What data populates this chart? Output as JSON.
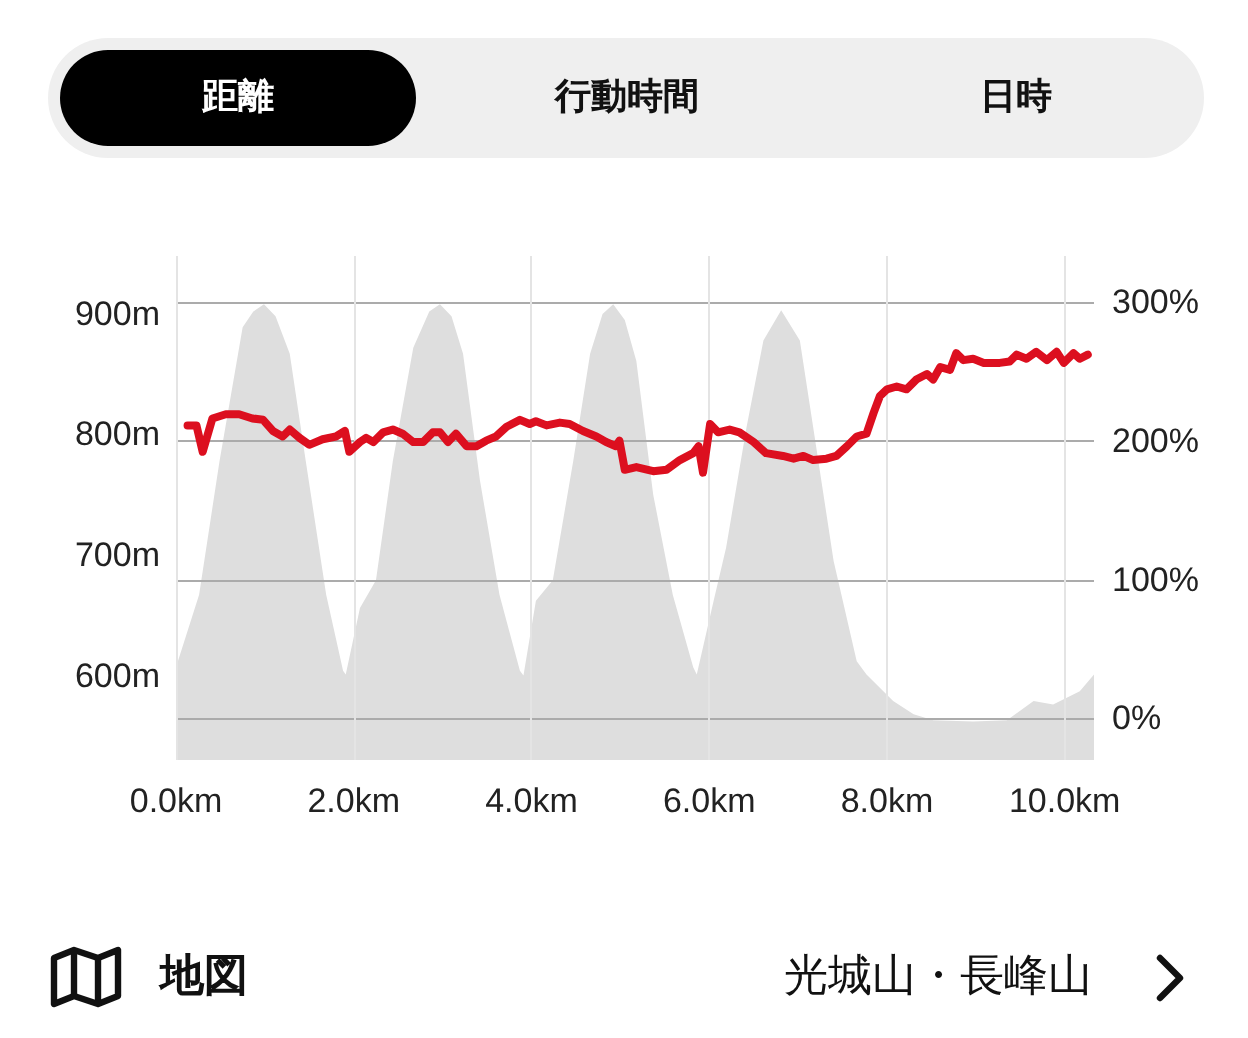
{
  "chart_data": {
    "type": "area",
    "annotations": [
      "距離",
      "行動時間",
      "日時",
      "地図",
      "光城山・長峰山"
    ],
    "xlim": [
      0,
      10.33
    ],
    "xticks": [
      {
        "value": 0,
        "label": "0.0km"
      },
      {
        "value": 2,
        "label": "2.0km"
      },
      {
        "value": 4,
        "label": "4.0km"
      },
      {
        "value": 6,
        "label": "6.0km"
      },
      {
        "value": 8,
        "label": "8.0km"
      },
      {
        "value": 10,
        "label": "10.0km"
      }
    ],
    "ylim": [
      530,
      948
    ],
    "yticks": [
      {
        "value": 600,
        "label": "600m"
      },
      {
        "value": 700,
        "label": "700m"
      },
      {
        "value": 800,
        "label": "800m"
      },
      {
        "value": 900,
        "label": "900m"
      }
    ],
    "y2lim": [
      -30,
      333
    ],
    "y2ticks": [
      {
        "value": 0,
        "label": "0%"
      },
      {
        "value": 100,
        "label": "100%"
      },
      {
        "value": 200,
        "label": "200%"
      },
      {
        "value": 300,
        "label": "300%"
      }
    ],
    "grid": true,
    "series": [
      {
        "color": "#dedede",
        "x": [
          0,
          0.26,
          0.49,
          0.75,
          0.87,
          0.99,
          1.12,
          1.28,
          1.46,
          1.69,
          1.88,
          1.91,
          2.07,
          2.25,
          2.44,
          2.67,
          2.85,
          2.97,
          3.1,
          3.23,
          3.42,
          3.64,
          3.87,
          3.91,
          4.05,
          4.24,
          4.47,
          4.66,
          4.8,
          4.92,
          5.05,
          5.18,
          5.37,
          5.59,
          5.82,
          5.86,
          6.05,
          6.19,
          6.42,
          6.61,
          6.81,
          7.02,
          7.17,
          7.4,
          7.66,
          7.77,
          8.07,
          8.3,
          8.52,
          8.97,
          9.35,
          9.65,
          9.87,
          10.17,
          10.33
        ],
        "values": [
          607,
          667,
          778,
          889,
          902,
          908,
          898,
          867,
          778,
          667,
          604,
          601,
          656,
          679,
          778,
          872,
          902,
          908,
          898,
          867,
          762,
          667,
          604,
          600,
          662,
          679,
          778,
          867,
          900,
          908,
          895,
          861,
          750,
          667,
          607,
          601,
          662,
          706,
          806,
          878,
          903,
          878,
          806,
          695,
          612,
          601,
          579,
          568,
          563,
          562,
          563,
          579,
          576,
          587,
          601
        ]
      },
      {
        "type": "line",
        "axis": "y2",
        "color": "#dc0f1f",
        "x": [
          0.13,
          0.23,
          0.3,
          0.41,
          0.56,
          0.71,
          0.86,
          0.98,
          1.09,
          1.2,
          1.28,
          1.39,
          1.5,
          1.65,
          1.8,
          1.9,
          1.95,
          2.07,
          2.14,
          2.22,
          2.33,
          2.44,
          2.55,
          2.67,
          2.78,
          2.89,
          2.97,
          3.06,
          3.15,
          3.27,
          3.38,
          3.49,
          3.6,
          3.72,
          3.87,
          3.98,
          4.05,
          4.17,
          4.32,
          4.43,
          4.58,
          4.73,
          4.84,
          4.95,
          4.99,
          5.05,
          5.18,
          5.37,
          5.52,
          5.67,
          5.82,
          5.88,
          5.93,
          6.01,
          6.1,
          6.23,
          6.34,
          6.5,
          6.64,
          6.83,
          6.95,
          7.06,
          7.17,
          7.32,
          7.43,
          7.55,
          7.66,
          7.77,
          7.85,
          7.92,
          8,
          8.11,
          8.22,
          8.33,
          8.45,
          8.52,
          8.6,
          8.71,
          8.78,
          8.86,
          8.97,
          9.09,
          9.27,
          9.38,
          9.46,
          9.57,
          9.68,
          9.8,
          9.91,
          9.99,
          10.1,
          10.17,
          10.26
        ],
        "values": [
          211,
          211,
          192,
          216,
          219,
          219,
          216,
          215,
          207,
          203,
          208,
          202,
          197,
          201,
          203,
          207,
          192,
          199,
          202,
          199,
          206,
          208,
          205,
          199,
          199,
          206,
          206,
          199,
          205,
          196,
          196,
          200,
          203,
          210,
          215,
          212,
          214,
          211,
          213,
          212,
          207,
          203,
          199,
          196,
          200,
          179,
          181,
          178,
          179,
          186,
          191,
          196,
          177,
          212,
          206,
          208,
          206,
          199,
          191,
          189,
          187,
          189,
          186,
          187,
          189,
          196,
          203,
          205,
          220,
          232,
          237,
          239,
          237,
          244,
          248,
          244,
          253,
          251,
          263,
          258,
          259,
          256,
          256,
          257,
          262,
          259,
          264,
          258,
          264,
          256,
          263,
          259,
          262
        ]
      }
    ]
  }
}
